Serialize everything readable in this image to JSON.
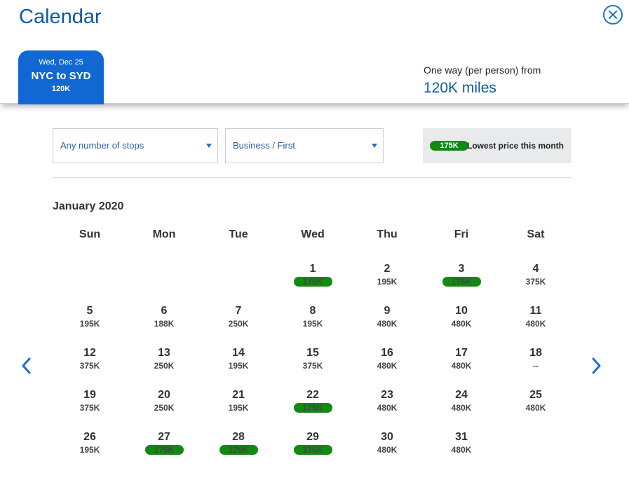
{
  "header": {
    "title": "Calendar",
    "close_icon": "close-circle-icon"
  },
  "trip": {
    "date": "Wed, Dec 25",
    "route": "NYC to SYD",
    "price": "120K"
  },
  "fare": {
    "label": "One way (per person) from",
    "value": "120K miles"
  },
  "filters": {
    "stops": "Any number of stops",
    "cabin": "Business / First"
  },
  "legend": {
    "pill": "175K",
    "text": "Lowest price this month"
  },
  "calendar": {
    "month": "January 2020",
    "weekdays": [
      "Sun",
      "Mon",
      "Tue",
      "Wed",
      "Thu",
      "Fri",
      "Sat"
    ],
    "first_weekday_index": 3,
    "days": [
      {
        "day": "1",
        "price": "175K",
        "lowest": true
      },
      {
        "day": "2",
        "price": "195K",
        "lowest": false
      },
      {
        "day": "3",
        "price": "175K",
        "lowest": true
      },
      {
        "day": "4",
        "price": "375K",
        "lowest": false
      },
      {
        "day": "5",
        "price": "195K",
        "lowest": false
      },
      {
        "day": "6",
        "price": "188K",
        "lowest": false
      },
      {
        "day": "7",
        "price": "250K",
        "lowest": false
      },
      {
        "day": "8",
        "price": "195K",
        "lowest": false
      },
      {
        "day": "9",
        "price": "480K",
        "lowest": false
      },
      {
        "day": "10",
        "price": "480K",
        "lowest": false
      },
      {
        "day": "11",
        "price": "480K",
        "lowest": false
      },
      {
        "day": "12",
        "price": "375K",
        "lowest": false
      },
      {
        "day": "13",
        "price": "250K",
        "lowest": false
      },
      {
        "day": "14",
        "price": "195K",
        "lowest": false
      },
      {
        "day": "15",
        "price": "375K",
        "lowest": false
      },
      {
        "day": "16",
        "price": "480K",
        "lowest": false
      },
      {
        "day": "17",
        "price": "480K",
        "lowest": false
      },
      {
        "day": "18",
        "price": "--",
        "lowest": false
      },
      {
        "day": "19",
        "price": "375K",
        "lowest": false
      },
      {
        "day": "20",
        "price": "250K",
        "lowest": false
      },
      {
        "day": "21",
        "price": "195K",
        "lowest": false
      },
      {
        "day": "22",
        "price": "175K",
        "lowest": true
      },
      {
        "day": "23",
        "price": "480K",
        "lowest": false
      },
      {
        "day": "24",
        "price": "480K",
        "lowest": false
      },
      {
        "day": "25",
        "price": "480K",
        "lowest": false
      },
      {
        "day": "26",
        "price": "195K",
        "lowest": false
      },
      {
        "day": "27",
        "price": "175K",
        "lowest": true
      },
      {
        "day": "28",
        "price": "175K",
        "lowest": true
      },
      {
        "day": "29",
        "price": "175K",
        "lowest": true
      },
      {
        "day": "30",
        "price": "480K",
        "lowest": false
      },
      {
        "day": "31",
        "price": "480K",
        "lowest": false
      }
    ]
  },
  "navigation": {
    "prev_icon": "chevron-left-icon",
    "next_icon": "chevron-right-icon"
  },
  "colors": {
    "brand_blue": "#0b5aa8",
    "tab_blue": "#1268d3",
    "lowest_green": "#128a12"
  }
}
